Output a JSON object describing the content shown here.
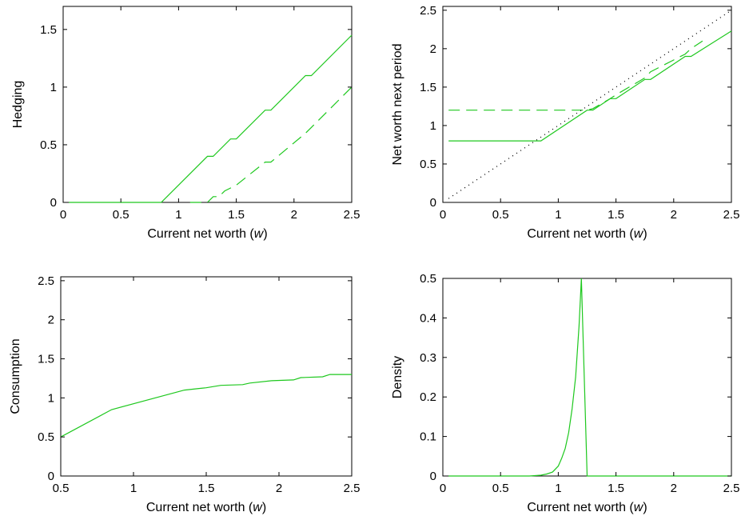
{
  "colors": {
    "series": "#1ec81e",
    "axis": "#000000",
    "diagonal": "#000000"
  },
  "chart_data": [
    {
      "type": "line",
      "id": "hedging",
      "xlabel_main": "Current net worth (",
      "xlabel_var": "w",
      "xlabel_end": ")",
      "ylabel": "Hedging",
      "xlim": [
        0,
        2.5
      ],
      "ylim": [
        0,
        1.7
      ],
      "xticks": [
        0,
        0.5,
        1,
        1.5,
        2,
        2.5
      ],
      "xtick_labels": [
        "0",
        "0.5",
        "1",
        "1.5",
        "2",
        "2.5"
      ],
      "yticks": [
        0,
        0.5,
        1,
        1.5
      ],
      "ytick_labels": [
        "0",
        "0.5",
        "1",
        "1.5"
      ],
      "series": [
        {
          "style": "solid",
          "x": [
            0.05,
            0.85,
            1.25,
            1.3,
            1.45,
            1.5,
            1.75,
            1.8,
            2.1,
            2.15,
            2.5
          ],
          "y": [
            0,
            0,
            0.4,
            0.4,
            0.55,
            0.55,
            0.8,
            0.8,
            1.1,
            1.1,
            1.45
          ]
        },
        {
          "style": "dashed",
          "x": [
            1.1,
            1.25,
            1.3,
            1.33,
            1.35,
            1.4,
            1.5,
            1.75,
            1.8,
            2.1,
            2.15,
            2.5
          ],
          "y": [
            0,
            0,
            0.05,
            0.05,
            0.05,
            0.1,
            0.15,
            0.35,
            0.35,
            0.6,
            0.65,
            1.0
          ]
        }
      ]
    },
    {
      "type": "line",
      "id": "net-worth-next",
      "xlabel_main": "Current net worth (",
      "xlabel_var": "w",
      "xlabel_end": ")",
      "ylabel": "Net worth next period",
      "xlim": [
        0,
        2.5
      ],
      "ylim": [
        0,
        2.55
      ],
      "xticks": [
        0,
        0.5,
        1,
        1.5,
        2,
        2.5
      ],
      "xtick_labels": [
        "0",
        "0.5",
        "1",
        "1.5",
        "2",
        "2.5"
      ],
      "yticks": [
        0,
        0.5,
        1,
        1.5,
        2,
        2.5
      ],
      "ytick_labels": [
        "0",
        "0.5",
        "1",
        "1.5",
        "2",
        "2.5"
      ],
      "series": [
        {
          "style": "solid",
          "x": [
            0.05,
            0.85,
            1.25,
            1.3,
            1.45,
            1.5,
            1.75,
            1.8,
            2.1,
            2.15,
            2.5
          ],
          "y": [
            0.8,
            0.8,
            1.2,
            1.2,
            1.35,
            1.35,
            1.6,
            1.6,
            1.9,
            1.9,
            2.23
          ]
        },
        {
          "style": "dashed",
          "x": [
            0.05,
            1.25,
            1.3,
            1.45,
            1.5,
            1.75,
            1.8,
            2.1,
            2.15,
            2.25
          ],
          "y": [
            1.2,
            1.2,
            1.22,
            1.35,
            1.4,
            1.62,
            1.7,
            1.93,
            2.0,
            2.1
          ]
        },
        {
          "style": "dotted",
          "x": [
            0.05,
            2.5
          ],
          "y": [
            0.05,
            2.5
          ]
        }
      ]
    },
    {
      "type": "line",
      "id": "consumption",
      "xlabel_main": "Current net worth (",
      "xlabel_var": "w",
      "xlabel_end": ")",
      "ylabel": "Consumption",
      "xlim": [
        0.5,
        2.5
      ],
      "ylim": [
        0,
        2.55
      ],
      "xticks": [
        0.5,
        1,
        1.5,
        2,
        2.5
      ],
      "xtick_labels": [
        "0.5",
        "1",
        "1.5",
        "2",
        "2.5"
      ],
      "yticks": [
        0,
        0.5,
        1,
        1.5,
        2,
        2.5
      ],
      "ytick_labels": [
        "0",
        "0.5",
        "1",
        "1.5",
        "2",
        "2.5"
      ],
      "series": [
        {
          "style": "solid",
          "x": [
            0.5,
            0.85,
            1.35,
            1.45,
            1.5,
            1.6,
            1.75,
            1.8,
            1.95,
            2.1,
            2.15,
            2.3,
            2.35,
            2.5
          ],
          "y": [
            0.5,
            0.85,
            1.1,
            1.12,
            1.13,
            1.16,
            1.17,
            1.19,
            1.22,
            1.23,
            1.26,
            1.27,
            1.3,
            1.3
          ]
        }
      ]
    },
    {
      "type": "line",
      "id": "density",
      "xlabel_main": "Current net worth (",
      "xlabel_var": "w",
      "xlabel_end": ")",
      "ylabel": "Density",
      "xlim": [
        0,
        2.5
      ],
      "ylim": [
        0,
        0.5
      ],
      "xticks": [
        0,
        0.5,
        1,
        1.5,
        2,
        2.5
      ],
      "xtick_labels": [
        "0",
        "0.5",
        "1",
        "1.5",
        "2",
        "2.5"
      ],
      "yticks": [
        0,
        0.1,
        0.2,
        0.3,
        0.4,
        0.5
      ],
      "ytick_labels": [
        "0",
        "0.1",
        "0.2",
        "0.3",
        "0.4",
        "0.5"
      ],
      "series": [
        {
          "style": "solid",
          "x": [
            0.05,
            0.75,
            0.85,
            0.9,
            0.95,
            1.0,
            1.03,
            1.06,
            1.09,
            1.12,
            1.15,
            1.18,
            1.2,
            1.25,
            1.26,
            2.5
          ],
          "y": [
            0,
            0,
            0.002,
            0.005,
            0.01,
            0.025,
            0.045,
            0.07,
            0.11,
            0.17,
            0.25,
            0.38,
            0.5,
            0.0,
            0,
            0
          ]
        }
      ]
    }
  ]
}
